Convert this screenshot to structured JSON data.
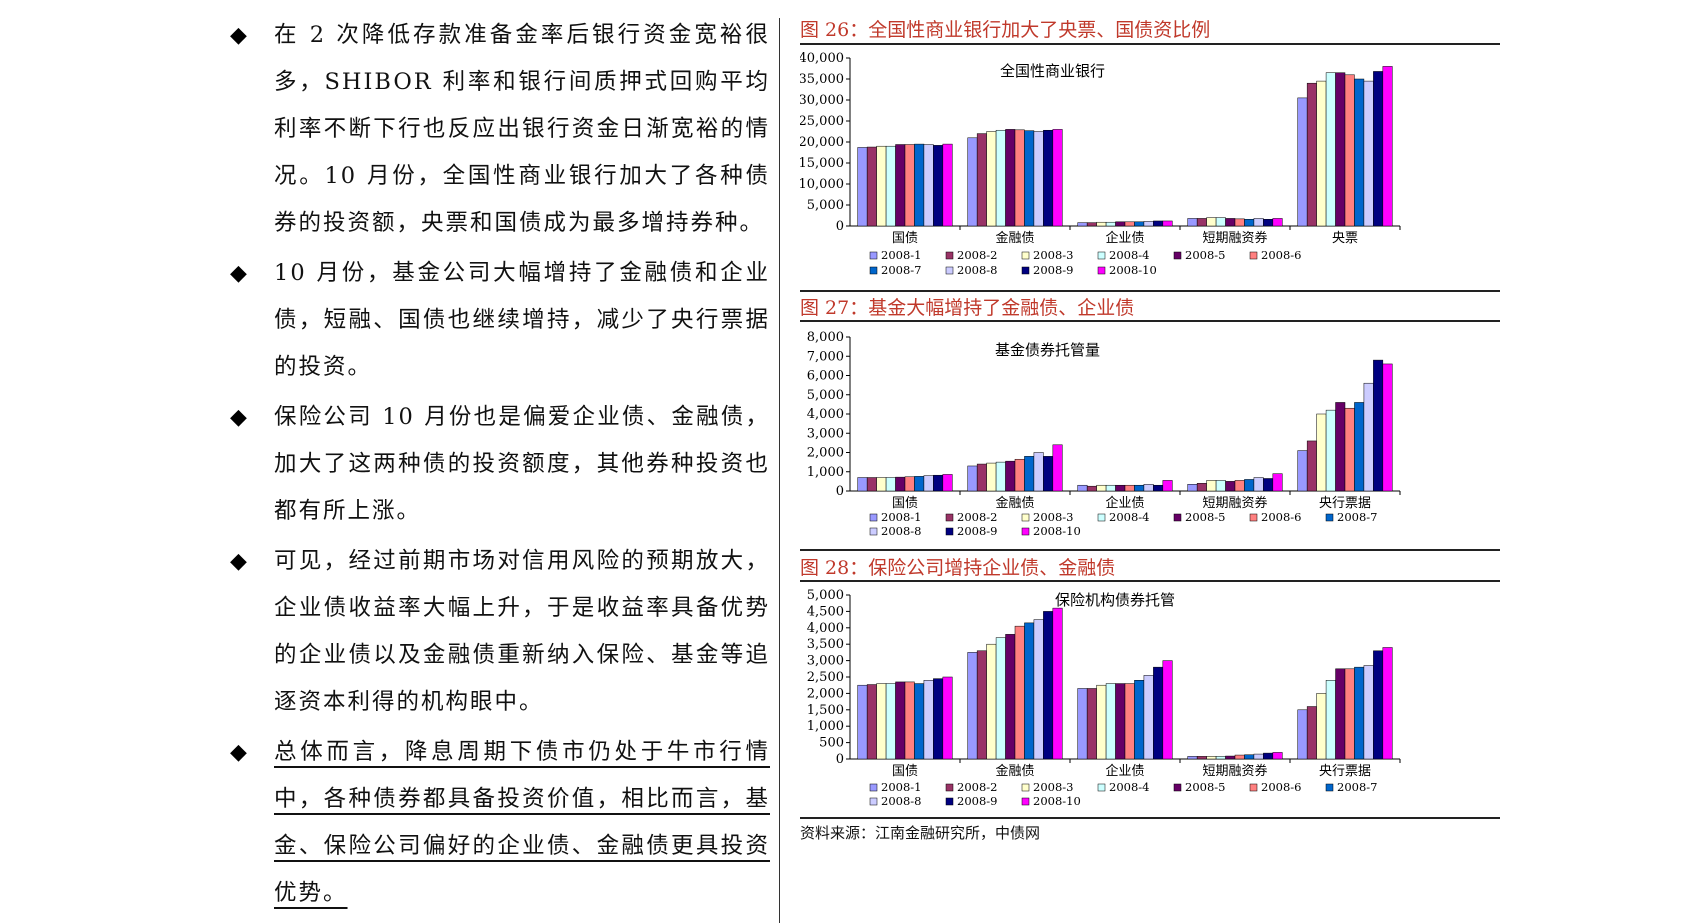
{
  "bullets": [
    {
      "text": "在 2 次降低存款准备金率后银行资金宽裕很多，SHIBOR 利率和银行间质押式回购平均利率不断下行也反应出银行资金日渐宽裕的情况。10 月份，全国性商业银行加大了各种债券的投资额，央票和国债成为最多增持券种。",
      "underline": false
    },
    {
      "text": "10 月份，基金公司大幅增持了金融债和企业债，短融、国债也继续增持，减少了央行票据的投资。",
      "underline": false
    },
    {
      "text": "保险公司 10 月份也是偏爱企业债、金融债，加大了这两种债的投资额度，其他券种投资也都有所上涨。",
      "underline": false
    },
    {
      "text": "可见，经过前期市场对信用风险的预期放大，企业债收益率大幅上升，于是收益率具备优势的企业债以及金融债重新纳入保险、基金等追逐资本利得的机构眼中。",
      "underline": false
    },
    {
      "text": "总体而言，降息周期下债市仍处于牛市行情中，各种债券都具备投资价值，相比而言，基金、保险公司偏好的企业债、金融债更具投资优势。",
      "underline": true
    }
  ],
  "bullet_symbol": "◆",
  "figures": [
    {
      "title": "图 26：全国性商业银行加大了央票、国债资比例"
    },
    {
      "title": "图 27：基金大幅增持了金融债、企业债"
    },
    {
      "title": "图 28：保险公司增持企业债、金融债"
    }
  ],
  "source_note": "资料来源：江南金融研究所，中债网",
  "colors": {
    "title_red": "#c0392b",
    "series": [
      "#9999ff",
      "#993366",
      "#ffffcc",
      "#ccffff",
      "#660066",
      "#ff8080",
      "#0066cc",
      "#ccccff",
      "#000080",
      "#ff00ff"
    ]
  },
  "chart_data": [
    {
      "type": "bar",
      "title": "全国性商业银行",
      "categories": [
        "国债",
        "金融债",
        "企业债",
        "短期融资券",
        "央票"
      ],
      "ylim": [
        0,
        40000
      ],
      "yticks": [
        "0",
        "5,000",
        "10,000",
        "15,000",
        "20,000",
        "25,000",
        "30,000",
        "35,000",
        "40,000"
      ],
      "legend_position": "bottom",
      "series": [
        {
          "name": "2008-1",
          "values": [
            18700,
            21000,
            800,
            1800,
            30500
          ]
        },
        {
          "name": "2008-2",
          "values": [
            18800,
            22000,
            800,
            1800,
            34000
          ]
        },
        {
          "name": "2008-3",
          "values": [
            19000,
            22500,
            900,
            2000,
            34500
          ]
        },
        {
          "name": "2008-4",
          "values": [
            19000,
            22800,
            900,
            2000,
            36500
          ]
        },
        {
          "name": "2008-5",
          "values": [
            19400,
            23000,
            1000,
            1800,
            36500
          ]
        },
        {
          "name": "2008-6",
          "values": [
            19400,
            22900,
            1000,
            1700,
            36000
          ]
        },
        {
          "name": "2008-7",
          "values": [
            19500,
            22700,
            1000,
            1600,
            35000
          ]
        },
        {
          "name": "2008-8",
          "values": [
            19400,
            22500,
            1100,
            1800,
            34500
          ]
        },
        {
          "name": "2008-9",
          "values": [
            19200,
            22800,
            1200,
            1600,
            36800
          ]
        },
        {
          "name": "2008-10",
          "values": [
            19500,
            23000,
            1200,
            1800,
            38000
          ]
        }
      ]
    },
    {
      "type": "bar",
      "title": "基金债券托管量",
      "categories": [
        "国债",
        "金融债",
        "企业债",
        "短期融资券",
        "央行票据"
      ],
      "ylim": [
        0,
        8000
      ],
      "yticks": [
        "0",
        "1,000",
        "2,000",
        "3,000",
        "4,000",
        "5,000",
        "6,000",
        "7,000",
        "8,000"
      ],
      "legend_position": "bottom",
      "series": [
        {
          "name": "2008-1",
          "values": [
            700,
            1300,
            300,
            350,
            2100
          ]
        },
        {
          "name": "2008-2",
          "values": [
            700,
            1400,
            250,
            400,
            2600
          ]
        },
        {
          "name": "2008-3",
          "values": [
            700,
            1450,
            300,
            550,
            4000
          ]
        },
        {
          "name": "2008-4",
          "values": [
            700,
            1500,
            300,
            550,
            4200
          ]
        },
        {
          "name": "2008-5",
          "values": [
            720,
            1550,
            300,
            500,
            4600
          ]
        },
        {
          "name": "2008-6",
          "values": [
            740,
            1650,
            300,
            550,
            4300
          ]
        },
        {
          "name": "2008-7",
          "values": [
            760,
            1800,
            300,
            600,
            4600
          ]
        },
        {
          "name": "2008-8",
          "values": [
            800,
            2000,
            350,
            700,
            5600
          ]
        },
        {
          "name": "2008-9",
          "values": [
            820,
            1800,
            300,
            650,
            6800
          ]
        },
        {
          "name": "2008-10",
          "values": [
            860,
            2400,
            550,
            900,
            6600
          ]
        }
      ]
    },
    {
      "type": "bar",
      "title": "保险机构债券托管",
      "categories": [
        "国债",
        "金融债",
        "企业债",
        "短期融资券",
        "央行票据"
      ],
      "ylim": [
        0,
        5000
      ],
      "yticks": [
        "0",
        "500",
        "1,000",
        "1,500",
        "2,000",
        "2,500",
        "3,000",
        "3,500",
        "4,000",
        "4,500",
        "5,000"
      ],
      "legend_position": "bottom",
      "series": [
        {
          "name": "2008-1",
          "values": [
            2250,
            3250,
            2150,
            80,
            1500
          ]
        },
        {
          "name": "2008-2",
          "values": [
            2270,
            3300,
            2150,
            80,
            1600
          ]
        },
        {
          "name": "2008-3",
          "values": [
            2300,
            3500,
            2250,
            80,
            2000
          ]
        },
        {
          "name": "2008-4",
          "values": [
            2300,
            3700,
            2300,
            80,
            2400
          ]
        },
        {
          "name": "2008-5",
          "values": [
            2350,
            3800,
            2300,
            90,
            2750
          ]
        },
        {
          "name": "2008-6",
          "values": [
            2350,
            4050,
            2300,
            120,
            2750
          ]
        },
        {
          "name": "2008-7",
          "values": [
            2300,
            4150,
            2400,
            130,
            2800
          ]
        },
        {
          "name": "2008-8",
          "values": [
            2400,
            4250,
            2550,
            150,
            2850
          ]
        },
        {
          "name": "2008-9",
          "values": [
            2450,
            4500,
            2800,
            180,
            3300
          ]
        },
        {
          "name": "2008-10",
          "values": [
            2500,
            4600,
            3000,
            200,
            3400
          ]
        }
      ]
    }
  ]
}
